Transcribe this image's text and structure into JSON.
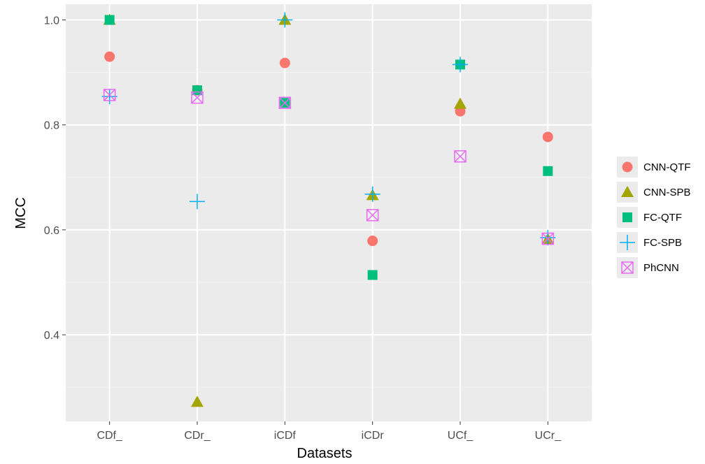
{
  "chart_data": {
    "type": "scatter",
    "xlabel": "Datasets",
    "ylabel": "MCC",
    "categories": [
      "CDf_",
      "CDr_",
      "iCDf",
      "iCDr",
      "UCf_",
      "UCr_"
    ],
    "y_ticks": [
      "0.4",
      "0.6",
      "0.8",
      "1.0"
    ],
    "ylim": [
      0.235,
      1.03
    ],
    "grid": true,
    "legend_position": "right",
    "series": [
      {
        "name": "CNN-QTF",
        "shape": "circle",
        "color": "#F8766D",
        "values": [
          0.93,
          0.866,
          0.918,
          0.579,
          0.826,
          0.777
        ]
      },
      {
        "name": "CNN-SPB",
        "shape": "triangle",
        "color": "#A3A500",
        "values": [
          1.0,
          0.272,
          1.0,
          0.666,
          0.84,
          0.582
        ]
      },
      {
        "name": "FC-QTF",
        "shape": "square",
        "color": "#00BF7D",
        "values": [
          1.0,
          0.866,
          0.842,
          0.514,
          0.915,
          0.712
        ]
      },
      {
        "name": "FC-SPB",
        "shape": "plus",
        "color": "#00B0F6",
        "values": [
          0.854,
          0.654,
          1.0,
          0.668,
          0.915,
          0.585
        ]
      },
      {
        "name": "PhCNN",
        "shape": "boxed-x",
        "color": "#E76BF3",
        "values": [
          0.857,
          0.852,
          0.842,
          0.628,
          0.74,
          0.583
        ]
      }
    ]
  }
}
